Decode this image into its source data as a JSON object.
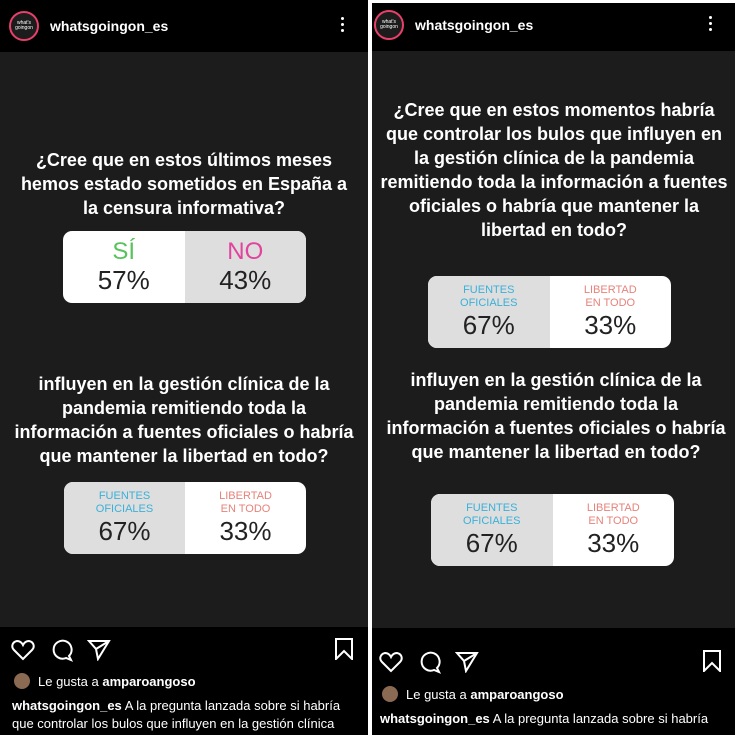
{
  "username": "whatsgoingon_es",
  "avatar_text": "what's goingon",
  "colors": {
    "yes": "#58c25b",
    "no": "#e2449d",
    "fuentes": "#3ab0d8",
    "libertad": "#e6837a"
  },
  "post1": {
    "question1": "¿Cree que en estos últimos meses hemos estado sometidos en España a la censura informativa?",
    "poll1": {
      "option_a": "SÍ",
      "pct_a": "57%",
      "option_b": "NO",
      "pct_b": "43%"
    },
    "question2_partial": "influyen en la gestión clínica de la pandemia remitiendo toda la información a fuentes oficiales o habría que mantener la libertad en todo?",
    "poll2": {
      "option_a_line1": "FUENTES",
      "option_a_line2": "OFICIALES",
      "pct_a": "67%",
      "option_b_line1": "LIBERTAD",
      "option_b_line2": "EN TODO",
      "pct_b": "33%"
    },
    "liked_prefix": "Le gusta a",
    "liked_user": "amparoangoso",
    "caption_user": "whatsgoingon_es",
    "caption_text": "A la pregunta lanzada sobre si habría que controlar los bulos que influyen en la gestión clínica"
  },
  "post2": {
    "question": "¿Cree que en estos momentos habría que controlar los bulos que influyen en la gestión clínica de la pandemia remitiendo toda la información a fuentes oficiales o habría que mantener la libertad en todo?",
    "poll": {
      "option_a_line1": "FUENTES",
      "option_a_line2": "OFICIALES",
      "pct_a": "67%",
      "option_b_line1": "LIBERTAD",
      "option_b_line2": "EN TODO",
      "pct_b": "33%"
    }
  },
  "post3": {
    "question_partial": "influyen en la gestión clínica de la pandemia remitiendo toda la información a fuentes oficiales o habría que mantener la libertad en todo?",
    "poll": {
      "option_a_line1": "FUENTES",
      "option_a_line2": "OFICIALES",
      "pct_a": "67%",
      "option_b_line1": "LIBERTAD",
      "option_b_line2": "EN TODO",
      "pct_b": "33%"
    },
    "liked_prefix": "Le gusta a",
    "liked_user": "amparoangoso",
    "caption_user": "whatsgoingon_es",
    "caption_text": "A la pregunta lanzada sobre si habría"
  }
}
